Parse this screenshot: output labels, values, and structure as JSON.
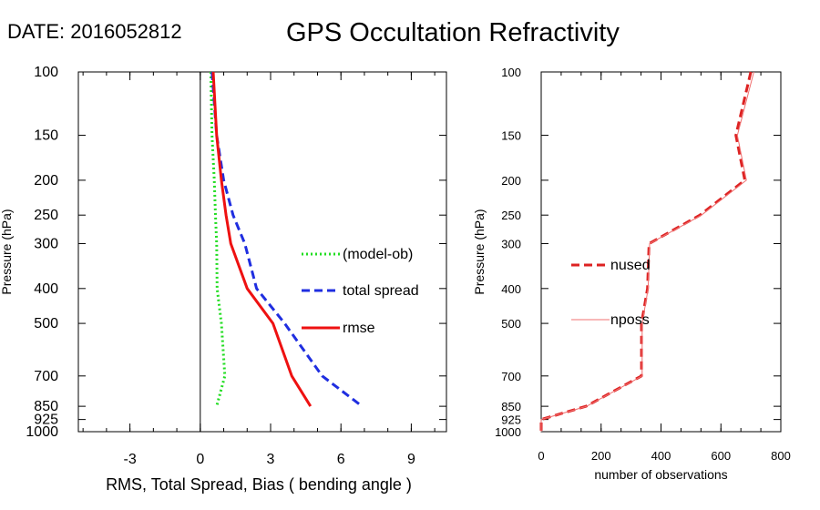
{
  "header": {
    "date_label": "DATE: 2016052812",
    "title": "GPS Occultation Refractivity"
  },
  "chart_data": [
    {
      "type": "line",
      "xlabel": "RMS, Total Spread, Bias ( bending angle )",
      "ylabel": "Pressure (hPa)",
      "xlim": [
        -5.2,
        10.5
      ],
      "ylim": [
        1000,
        100
      ],
      "y_scale": "log",
      "x_ticks": [
        -3,
        0,
        3,
        6,
        9
      ],
      "y_ticks": [
        100,
        150,
        200,
        250,
        300,
        400,
        500,
        700,
        850,
        925,
        1000
      ],
      "zero_line": true,
      "legend_position": "right-middle",
      "series": [
        {
          "name": "(model-ob)",
          "color": "#22dd22",
          "style": "dotted",
          "points": [
            [
              0.45,
              100
            ],
            [
              0.5,
              150
            ],
            [
              0.6,
              200
            ],
            [
              0.65,
              250
            ],
            [
              0.7,
              300
            ],
            [
              0.72,
              400
            ],
            [
              0.9,
              500
            ],
            [
              1.05,
              700
            ],
            [
              0.7,
              850
            ]
          ]
        },
        {
          "name": "total spread",
          "color": "#1f2ee0",
          "style": "dashed",
          "points": [
            [
              0.5,
              100
            ],
            [
              0.7,
              150
            ],
            [
              1.0,
              200
            ],
            [
              1.4,
              250
            ],
            [
              1.9,
              300
            ],
            [
              2.4,
              400
            ],
            [
              3.6,
              500
            ],
            [
              5.2,
              700
            ],
            [
              6.9,
              850
            ]
          ]
        },
        {
          "name": "rmse",
          "color": "#ee1111",
          "style": "solid",
          "points": [
            [
              0.55,
              100
            ],
            [
              0.7,
              150
            ],
            [
              0.9,
              200
            ],
            [
              1.1,
              250
            ],
            [
              1.3,
              300
            ],
            [
              2.0,
              400
            ],
            [
              3.1,
              500
            ],
            [
              3.9,
              700
            ],
            [
              4.7,
              850
            ]
          ]
        }
      ]
    },
    {
      "type": "line",
      "xlabel": "number of observations",
      "ylabel": "Pressure (hPa)",
      "xlim": [
        0,
        800
      ],
      "ylim": [
        1000,
        100
      ],
      "y_scale": "log",
      "x_ticks": [
        0,
        200,
        400,
        600,
        800
      ],
      "y_ticks": [
        100,
        150,
        200,
        250,
        300,
        400,
        500,
        700,
        850,
        925,
        1000
      ],
      "legend_position": "left-middle",
      "series": [
        {
          "name": "nused",
          "color": "#dd2222",
          "style": "dashed",
          "points": [
            [
              700,
              100
            ],
            [
              650,
              150
            ],
            [
              680,
              200
            ],
            [
              530,
              250
            ],
            [
              360,
              300
            ],
            [
              355,
              400
            ],
            [
              335,
              500
            ],
            [
              335,
              700
            ],
            [
              150,
              850
            ],
            [
              0,
              925
            ],
            [
              0,
              1000
            ]
          ]
        },
        {
          "name": "nposs",
          "color": "#f07070",
          "style": "thin",
          "points": [
            [
              710,
              100
            ],
            [
              655,
              150
            ],
            [
              685,
              200
            ],
            [
              535,
              250
            ],
            [
              362,
              300
            ],
            [
              357,
              400
            ],
            [
              337,
              500
            ],
            [
              337,
              700
            ],
            [
              152,
              850
            ],
            [
              0,
              925
            ],
            [
              0,
              1000
            ]
          ]
        }
      ]
    }
  ]
}
